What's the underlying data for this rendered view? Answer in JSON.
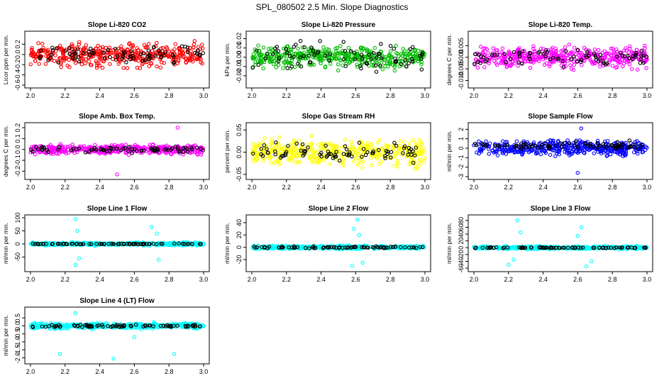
{
  "figure": {
    "title": "SPL_080502  2.5 Min. Slope Diagnostics"
  },
  "chart_data": [
    {
      "type": "scatter",
      "title": "Slope Li-820 CO2",
      "ylabel": "Licor ppm per min.",
      "xlim": [
        2.0,
        3.0
      ],
      "ylim": [
        -0.6,
        0.4
      ],
      "xticks": [
        "2.0",
        "2.2",
        "2.4",
        "2.6",
        "2.8",
        "3.0"
      ],
      "yticks": [
        "-0.6",
        "-0.4",
        "-0.2",
        "0.0",
        "0.2"
      ],
      "series": [
        {
          "color": "#ff0000",
          "level": 0.0,
          "spread": 0.32,
          "count": 420,
          "spikes": []
        },
        {
          "color": "#000000",
          "level": 0.0,
          "spread": 0.22,
          "count": 80,
          "spikes": []
        }
      ]
    },
    {
      "type": "scatter",
      "title": "Slope Li-820 Pressure",
      "ylabel": "kPa per min.",
      "xlim": [
        2.0,
        3.0
      ],
      "ylim": [
        -0.03,
        0.025
      ],
      "xticks": [
        "2.0",
        "2.2",
        "2.4",
        "2.6",
        "2.8",
        "3.0"
      ],
      "yticks": [
        "-0.02",
        "-0.01",
        "0.00",
        "0.01",
        "0.02"
      ],
      "series": [
        {
          "color": "#00bb00",
          "level": 0.0,
          "spread": 0.016,
          "count": 420,
          "spikes": []
        },
        {
          "color": "#000000",
          "level": 0.0,
          "spread": 0.02,
          "count": 80,
          "spikes": []
        }
      ]
    },
    {
      "type": "scatter",
      "title": "Slope Li-820 Temp.",
      "ylabel": "degrees C per min.",
      "xlim": [
        2.0,
        3.0
      ],
      "ylim": [
        -0.012,
        0.01
      ],
      "xticks": [
        "2.0",
        "2.2",
        "2.4",
        "2.6",
        "2.8",
        "3.0"
      ],
      "yticks": [
        "-0.010",
        "-0.005",
        "0.000",
        "0.005"
      ],
      "series": [
        {
          "color": "#ff00ff",
          "level": 0.0,
          "spread": 0.006,
          "count": 420,
          "spikes": []
        },
        {
          "color": "#000000",
          "level": 0.0,
          "spread": 0.005,
          "count": 80,
          "spikes": []
        }
      ]
    },
    {
      "type": "scatter",
      "title": "Slope Amb. Box Temp.",
      "ylabel": "degrees C per min.",
      "xlim": [
        2.0,
        3.0
      ],
      "ylim": [
        -0.25,
        0.22
      ],
      "xticks": [
        "2.0",
        "2.2",
        "2.4",
        "2.6",
        "2.8",
        "3.0"
      ],
      "yticks": [
        "-0.2",
        "-0.1",
        "0.0",
        "0.1",
        "0.2"
      ],
      "series": [
        {
          "color": "#ff00ff",
          "level": 0.0,
          "spread": 0.06,
          "count": 420,
          "spikes": [
            {
              "x": 2.5,
              "y": -0.23
            },
            {
              "x": 2.85,
              "y": 0.2
            }
          ]
        },
        {
          "color": "#000000",
          "level": 0.0,
          "spread": 0.04,
          "count": 80,
          "spikes": []
        }
      ]
    },
    {
      "type": "scatter",
      "title": "Slope Gas Stream RH",
      "ylabel": "percent per min.",
      "xlim": [
        2.0,
        3.0
      ],
      "ylim": [
        -0.055,
        0.06
      ],
      "xticks": [
        "2.0",
        "2.2",
        "2.4",
        "2.6",
        "2.8",
        "3.0"
      ],
      "yticks": [
        "-0.05",
        "0.00",
        "0.05"
      ],
      "series": [
        {
          "color": "#ffff00",
          "level": 0.0,
          "spread": 0.04,
          "count": 420,
          "spikes": []
        },
        {
          "color": "#000000",
          "level": 0.0,
          "spread": 0.03,
          "count": 80,
          "spikes": []
        }
      ]
    },
    {
      "type": "scatter",
      "title": "Slope Sample Flow",
      "ylabel": "ml/min per min.",
      "xlim": [
        2.0,
        3.0
      ],
      "ylim": [
        -3.0,
        2.4
      ],
      "xticks": [
        "2.0",
        "2.2",
        "2.4",
        "2.6",
        "2.8",
        "3.0"
      ],
      "yticks": [
        "-3",
        "-2",
        "-1",
        "0",
        "1",
        "2"
      ],
      "series": [
        {
          "color": "#0000ff",
          "level": 0.0,
          "spread": 1.1,
          "count": 420,
          "spikes": [
            {
              "x": 2.6,
              "y": -2.6
            },
            {
              "x": 2.62,
              "y": 2.1
            }
          ]
        },
        {
          "color": "#000000",
          "level": 0.3,
          "spread": 0.6,
          "count": 80,
          "spikes": []
        }
      ]
    },
    {
      "type": "scatter",
      "title": "Slope Line 1 Flow",
      "ylabel": "ml/min per min.",
      "xlim": [
        2.0,
        3.0
      ],
      "ylim": [
        -95,
        100
      ],
      "xticks": [
        "2.0",
        "2.2",
        "2.4",
        "2.6",
        "2.8",
        "3.0"
      ],
      "yticks": [
        "-50",
        "0",
        "50",
        "100"
      ],
      "series": [
        {
          "color": "#00ffff",
          "level": 0.0,
          "spread": 8,
          "count": 420,
          "spikes": [
            {
              "x": 2.26,
              "y": 95
            },
            {
              "x": 2.26,
              "y": -80
            },
            {
              "x": 2.27,
              "y": 50
            },
            {
              "x": 2.28,
              "y": -55
            },
            {
              "x": 2.7,
              "y": 65
            },
            {
              "x": 2.74,
              "y": -60
            },
            {
              "x": 2.73,
              "y": 40
            }
          ]
        },
        {
          "color": "#000000",
          "level": 0.0,
          "spread": 2,
          "count": 80,
          "spikes": []
        }
      ]
    },
    {
      "type": "scatter",
      "title": "Slope Line 2 Flow",
      "ylabel": "ml/min per min.",
      "xlim": [
        2.0,
        3.0
      ],
      "ylim": [
        -35,
        48
      ],
      "xticks": [
        "2.0",
        "2.2",
        "2.4",
        "2.6",
        "2.8",
        "3.0"
      ],
      "yticks": [
        "-20",
        "0",
        "20",
        "40"
      ],
      "series": [
        {
          "color": "#00ffff",
          "level": 0.0,
          "spread": 4,
          "count": 420,
          "spikes": [
            {
              "x": 2.61,
              "y": 45
            },
            {
              "x": 2.58,
              "y": -30
            },
            {
              "x": 2.59,
              "y": 30
            },
            {
              "x": 2.64,
              "y": -25
            },
            {
              "x": 2.62,
              "y": 20
            }
          ]
        },
        {
          "color": "#000000",
          "level": 0.0,
          "spread": 2,
          "count": 80,
          "spikes": []
        }
      ]
    },
    {
      "type": "scatter",
      "title": "Slope Line 3 Flow",
      "ylabel": "ml/min per min.",
      "xlim": [
        2.0,
        3.0
      ],
      "ylim": [
        -62,
        88
      ],
      "xticks": [
        "2.0",
        "2.2",
        "2.4",
        "2.6",
        "2.8",
        "3.0"
      ],
      "yticks": [
        "-60",
        "-40",
        "-20",
        "0",
        "20",
        "40",
        "60",
        "80"
      ],
      "series": [
        {
          "color": "#00ffff",
          "level": 0.0,
          "spread": 6,
          "count": 420,
          "spikes": [
            {
              "x": 2.25,
              "y": 80
            },
            {
              "x": 2.2,
              "y": -50
            },
            {
              "x": 2.27,
              "y": 45
            },
            {
              "x": 2.23,
              "y": -35
            },
            {
              "x": 2.62,
              "y": 60
            },
            {
              "x": 2.65,
              "y": -55
            },
            {
              "x": 2.6,
              "y": 35
            },
            {
              "x": 2.68,
              "y": -40
            }
          ]
        },
        {
          "color": "#000000",
          "level": 0.0,
          "spread": 2,
          "count": 80,
          "spikes": []
        }
      ]
    },
    {
      "type": "scatter",
      "title": "Slope Line 4 (LT) Flow",
      "ylabel": "ml/min per min.",
      "xlim": [
        2.0,
        3.0
      ],
      "ylim": [
        -2.2,
        1.0
      ],
      "xticks": [
        "2.0",
        "2.2",
        "2.4",
        "2.6",
        "2.8",
        "3.0"
      ],
      "yticks": [
        "-2.0",
        "-1.5",
        "-1.0",
        "-0.5",
        "0.0",
        "0.5"
      ],
      "series": [
        {
          "color": "#00ffff",
          "level": 0.0,
          "spread": 0.25,
          "count": 420,
          "spikes": [
            {
              "x": 2.17,
              "y": -1.75
            },
            {
              "x": 2.48,
              "y": -2.05
            },
            {
              "x": 2.83,
              "y": -1.75
            },
            {
              "x": 2.26,
              "y": 0.8
            },
            {
              "x": 2.6,
              "y": -0.7
            }
          ]
        },
        {
          "color": "#000000",
          "level": 0.0,
          "spread": 0.12,
          "count": 80,
          "spikes": []
        }
      ]
    }
  ]
}
